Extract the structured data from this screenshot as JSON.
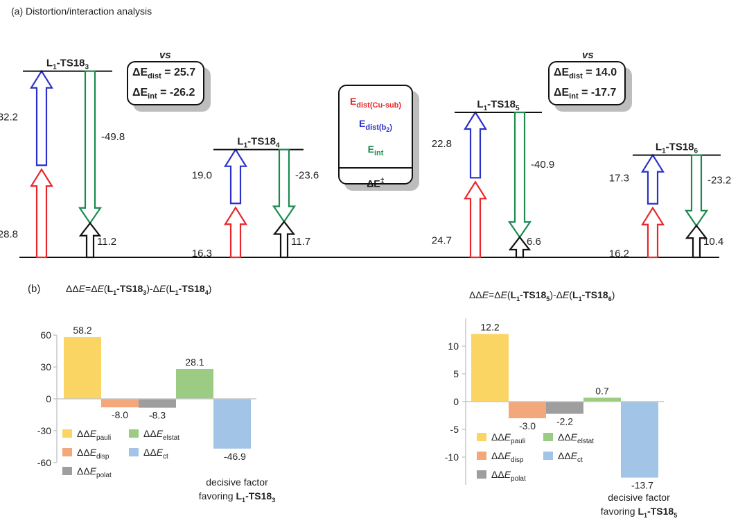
{
  "part_a": {
    "label": "(a) Distortion/interaction analysis"
  },
  "part_b": {
    "label": "(b)"
  },
  "vs_text": "vs",
  "symbols": {
    "delta": "Δ",
    "L": "L",
    "one": "1",
    "ts": "-TS18"
  },
  "comparisons": [
    {
      "dist_label": "E",
      "dist_sub": "dist",
      "dist_value": "= 25.7",
      "int_label": "E",
      "int_sub": "int",
      "int_value": "= -26.2"
    },
    {
      "dist_label": "E",
      "dist_sub": "dist",
      "dist_value": "= 14.0",
      "int_label": "E",
      "int_sub": "int",
      "int_value": "= -17.7"
    }
  ],
  "legend_box": {
    "e_dist_cu": {
      "main": "E",
      "sub": "dist(Cu-sub)"
    },
    "e_dist_b2": {
      "main": "E",
      "sub": "dist(b",
      "sub2": "2",
      "sub_close": ")"
    },
    "e_int": {
      "main": "E",
      "sub": "int"
    },
    "delta_e": "ΔE",
    "ddagger": "‡"
  },
  "colors": {
    "red": "#e8262a",
    "blue": "#2a30c8",
    "green": "#1a8a4f",
    "black": "#111111",
    "pauli": "#fbd564",
    "disp": "#f2a87a",
    "polat": "#9e9e9e",
    "elstat": "#9ccc83",
    "ct": "#a2c4e6"
  },
  "ts_blocks": [
    {
      "ts": "3",
      "red_value": "28.8",
      "blue_value": "32.2",
      "green_value": "-49.8",
      "black_value": "11.2",
      "red": 28.8,
      "blue": 32.2,
      "green": -49.8,
      "barrier": 11.2
    },
    {
      "ts": "4",
      "red_value": "16.3",
      "blue_value": "19.0",
      "green_value": "-23.6",
      "black_value": "11.7",
      "red": 16.3,
      "blue": 19.0,
      "green": -23.6,
      "barrier": 11.7
    },
    {
      "ts": "5",
      "red_value": "24.7",
      "blue_value": "22.8",
      "green_value": "-40.9",
      "black_value": "6.6",
      "red": 24.7,
      "blue": 22.8,
      "green": -40.9,
      "barrier": 6.6
    },
    {
      "ts": "6",
      "red_value": "16.2",
      "blue_value": "17.3",
      "green_value": "-23.2",
      "black_value": "10.4",
      "red": 16.2,
      "blue": 17.3,
      "green": -23.2,
      "barrier": 10.4
    }
  ],
  "chart_data": [
    {
      "type": "bar",
      "title_parts": {
        "pre": "ΔΔ",
        "E": "E",
        "eq": "=Δ",
        "mid": "(",
        "close": ")-Δ",
        "end": ")",
        "ts_a": "3",
        "ts_b": "4"
      },
      "categories": [
        "pauli",
        "disp",
        "polat",
        "elstat",
        "ct"
      ],
      "values": [
        58.2,
        -8.0,
        -8.3,
        28.1,
        -46.9
      ],
      "value_labels": [
        "58.2",
        "-8.0",
        "-8.3",
        "28.1",
        "-46.9"
      ],
      "ylim": [
        -60,
        60
      ],
      "yticks": [
        60,
        30,
        0,
        -30,
        -60
      ],
      "ytick_labels": [
        "60",
        "30",
        "0",
        "-30",
        "-60"
      ],
      "legend": [
        {
          "pre": "ΔΔ",
          "E": "E",
          "sub": "pauli"
        },
        {
          "pre": "ΔΔ",
          "E": "E",
          "sub": "elstat"
        },
        {
          "pre": "ΔΔ",
          "E": "E",
          "sub": "disp"
        },
        {
          "pre": "ΔΔ",
          "E": "E",
          "sub": "ct"
        },
        {
          "pre": "ΔΔ",
          "E": "E",
          "sub": "polat"
        }
      ],
      "annotation": {
        "line1": "decisive factor",
        "line2": "favoring ",
        "ts": "3"
      }
    },
    {
      "type": "bar",
      "title_parts": {
        "pre": "ΔΔ",
        "E": "E",
        "eq": "=Δ",
        "mid": "(",
        "close": ")-Δ",
        "end": ")",
        "ts_a": "5",
        "ts_b": "6"
      },
      "categories": [
        "pauli",
        "disp",
        "polat",
        "elstat",
        "ct"
      ],
      "values": [
        12.2,
        -3.0,
        -2.2,
        0.7,
        -13.7
      ],
      "value_labels": [
        "12.2",
        "-3.0",
        "-2.2",
        "0.7",
        "-13.7"
      ],
      "ylim": [
        -15,
        15
      ],
      "yticks": [
        10,
        5,
        0,
        -5,
        -10
      ],
      "ytick_labels": [
        "10",
        "5",
        "0",
        "-5",
        "-10"
      ],
      "legend": [
        {
          "pre": "ΔΔ",
          "E": "E",
          "sub": "pauli"
        },
        {
          "pre": "ΔΔ",
          "E": "E",
          "sub": "elstat"
        },
        {
          "pre": "ΔΔ",
          "E": "E",
          "sub": "disp"
        },
        {
          "pre": "ΔΔ",
          "E": "E",
          "sub": "ct"
        },
        {
          "pre": "ΔΔ",
          "E": "E",
          "sub": "polat"
        }
      ],
      "annotation": {
        "line1": "decisive factor",
        "line2": "favoring ",
        "ts": "5"
      }
    }
  ]
}
